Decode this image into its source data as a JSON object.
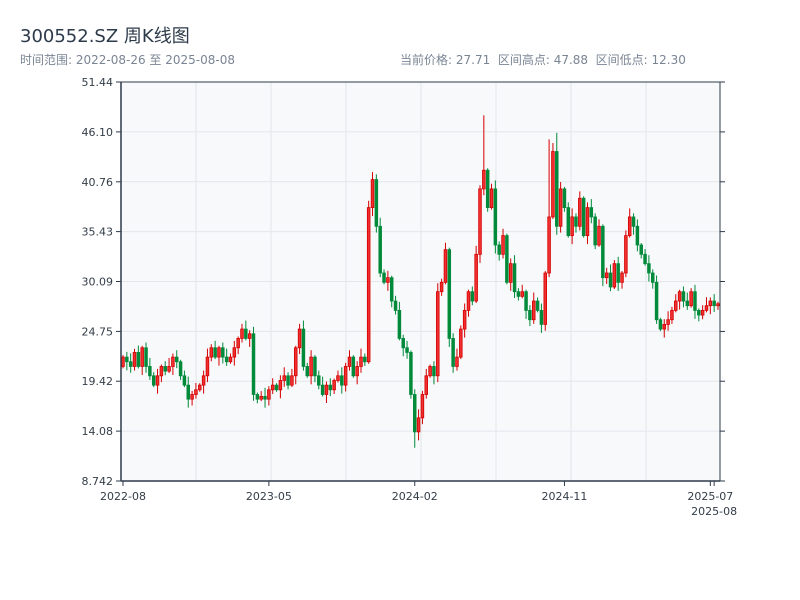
{
  "header": {
    "title": "300552.SZ 周K线图",
    "range": "时间范围: 2022-08-26 至 2025-08-08",
    "stats": "当前价格: 27.71  区间高点: 47.88  区间低点: 12.30"
  },
  "chart_data": {
    "type": "candlestick",
    "title": "300552.SZ 周K线图",
    "period": "weekly",
    "start": "2022-08-26",
    "end": "2025-08-08",
    "ylim": [
      8.742,
      51.44
    ],
    "yticks": [
      "51.44",
      "46.10",
      "40.76",
      "35.43",
      "30.09",
      "24.75",
      "19.42",
      "14.08",
      "8.742"
    ],
    "xticks": [
      {
        "label": "2022-08",
        "index": 0
      },
      {
        "label": "2023-05",
        "index": 38
      },
      {
        "label": "2024-02",
        "index": 76
      },
      {
        "label": "2024-11",
        "index": 115
      },
      {
        "label": "2025-07",
        "index": 153
      },
      {
        "label": "2025-08",
        "index": 154
      }
    ],
    "current": 27.71,
    "high": 47.88,
    "low": 12.3,
    "colors": {
      "up": "#d40000",
      "up_fill": "#f03030",
      "down": "#008a3a",
      "grid": "#e3e6eb",
      "plot_bg": "#f7f9fb",
      "axis": "#2d3a4a"
    },
    "first_open": 21.0,
    "wick": 0.7,
    "high_override": {
      "94": 47.88,
      "65": 41.8,
      "111": 45.3,
      "113": 46.0
    },
    "low_override": {
      "76": 12.3
    },
    "close": [
      22,
      21.5,
      21,
      22.5,
      21,
      23,
      21,
      20,
      19,
      20,
      21,
      20.5,
      21,
      22,
      21.5,
      20,
      19,
      17.5,
      18,
      18.5,
      19,
      20,
      22,
      23,
      22,
      23,
      22,
      21.5,
      22,
      23,
      24,
      25,
      24,
      24.5,
      18,
      17.5,
      17.8,
      17.5,
      18.5,
      19,
      18.5,
      19.5,
      20,
      19,
      20,
      23,
      25,
      21,
      20,
      22,
      20,
      19,
      18,
      19,
      18.5,
      19.5,
      20,
      19,
      21,
      22,
      20,
      21,
      22,
      21.5,
      38,
      41,
      36,
      31,
      30,
      30.5,
      28,
      27,
      24,
      23,
      22.5,
      18,
      14,
      15.5,
      18,
      20,
      21,
      20,
      29,
      30,
      33.5,
      24,
      21,
      22,
      25,
      27,
      29,
      28,
      33,
      40,
      42,
      38,
      40,
      34,
      33,
      35,
      30,
      32,
      29,
      28.5,
      29,
      27,
      26,
      28,
      27,
      25.5,
      31,
      37,
      44,
      36,
      40,
      38,
      35,
      37,
      36,
      39,
      35,
      38,
      37,
      34,
      36,
      30.5,
      31,
      29.5,
      32,
      30,
      31,
      35,
      37,
      36,
      34,
      33,
      32,
      31,
      30,
      26,
      25,
      25.5,
      26,
      27,
      28,
      29,
      28,
      27.5,
      29,
      27,
      26.5,
      27,
      27.5,
      28,
      27.5,
      27.71
    ]
  }
}
